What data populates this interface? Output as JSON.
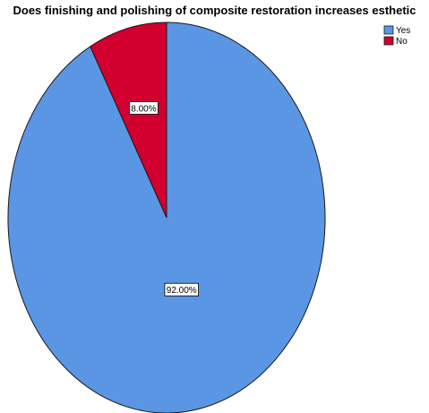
{
  "chart_data": {
    "type": "pie",
    "title": "Does finishing and polishing of composite restoration increases esthetic",
    "legend_position": "top-right",
    "series": [
      {
        "categories": [
          "Yes",
          "No"
        ],
        "values": [
          92.0,
          8.0
        ],
        "labels": [
          "92.00%",
          "8.00%"
        ],
        "colors": [
          "#5a96e4",
          "#d1002e"
        ]
      }
    ]
  }
}
